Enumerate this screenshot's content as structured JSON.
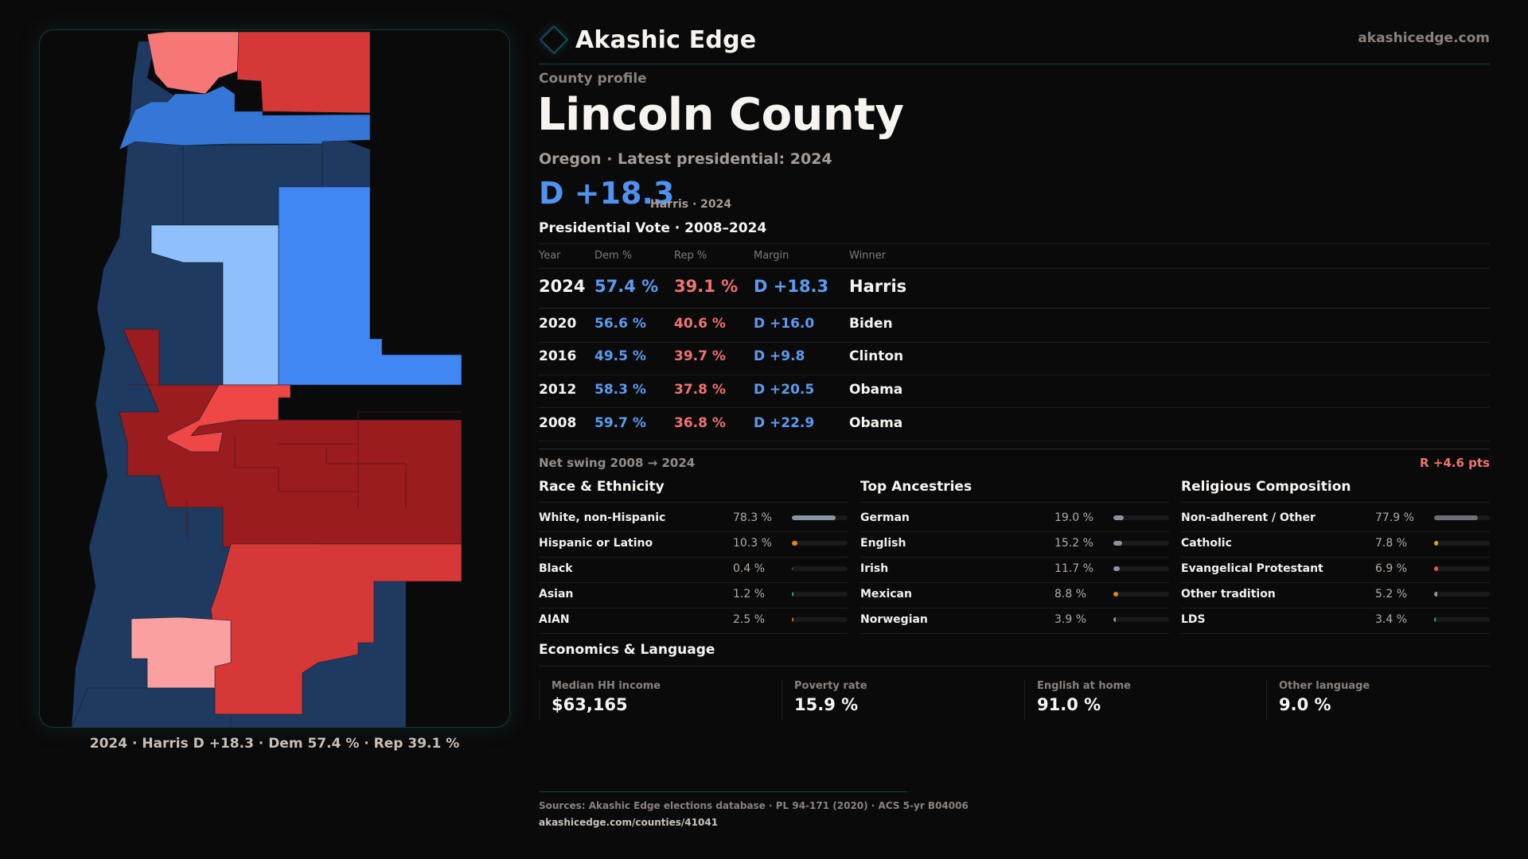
{
  "brand": {
    "name": "Akashic Edge",
    "icon": "diamond-outline-icon",
    "site": "akashicedge.com"
  },
  "profile": {
    "eyebrow": "County profile",
    "county": "Lincoln County",
    "subtitle": "Oregon · Latest presidential: 2024",
    "headline_margin": "D +18.3",
    "headline_sub": "Harris · 2024"
  },
  "colors": {
    "dem": "#5b9bf0",
    "rep": "#f07272",
    "accent": "#12505a"
  },
  "vote_table": {
    "title": "Presidential Vote · 2008–2024",
    "headers": {
      "year": "Year",
      "dem": "Dem %",
      "rep": "Rep %",
      "margin": "Margin",
      "winner": "Winner"
    },
    "rows": [
      {
        "year": "2024",
        "dem": "57.4 %",
        "rep": "39.1 %",
        "margin": "D +18.3",
        "winner": "Harris"
      },
      {
        "year": "2020",
        "dem": "56.6 %",
        "rep": "40.6 %",
        "margin": "D +16.0",
        "winner": "Biden"
      },
      {
        "year": "2016",
        "dem": "49.5 %",
        "rep": "39.7 %",
        "margin": "D +9.8",
        "winner": "Clinton"
      },
      {
        "year": "2012",
        "dem": "58.3 %",
        "rep": "37.8 %",
        "margin": "D +20.5",
        "winner": "Obama"
      },
      {
        "year": "2008",
        "dem": "59.7 %",
        "rep": "36.8 %",
        "margin": "D +22.9",
        "winner": "Obama"
      }
    ],
    "net_swing_label": "Net swing 2008 → 2024",
    "net_swing_value": "R +4.6 pts"
  },
  "demographics": [
    {
      "title": "Race & Ethnicity",
      "rows": [
        {
          "label": "White, non-Hispanic",
          "value": "78.3 %",
          "pct": 78.3,
          "color": "#8893a3"
        },
        {
          "label": "Hispanic or Latino",
          "value": "10.3 %",
          "pct": 10.3,
          "color": "#e08a0c"
        },
        {
          "label": "Black",
          "value": "0.4 %",
          "pct": 0.4,
          "color": "#6b6f78"
        },
        {
          "label": "Asian",
          "value": "1.2 %",
          "pct": 1.2,
          "color": "#2bb49a"
        },
        {
          "label": "AIAN",
          "value": "2.5 %",
          "pct": 2.5,
          "color": "#c9731e"
        }
      ]
    },
    {
      "title": "Top Ancestries",
      "rows": [
        {
          "label": "German",
          "value": "19.0 %",
          "pct": 19.0,
          "color": "#8893a3"
        },
        {
          "label": "English",
          "value": "15.2 %",
          "pct": 15.2,
          "color": "#8893a3"
        },
        {
          "label": "Irish",
          "value": "11.7 %",
          "pct": 11.7,
          "color": "#8893a3"
        },
        {
          "label": "Mexican",
          "value": "8.8 %",
          "pct": 8.8,
          "color": "#e08a0c"
        },
        {
          "label": "Norwegian",
          "value": "3.9 %",
          "pct": 3.9,
          "color": "#8893a3"
        }
      ]
    },
    {
      "title": "Religious Composition",
      "rows": [
        {
          "label": "Non-adherent / Other",
          "value": "77.9 %",
          "pct": 77.9,
          "color": "#6b6f78"
        },
        {
          "label": "Catholic",
          "value": "7.8 %",
          "pct": 7.8,
          "color": "#e0a40c"
        },
        {
          "label": "Evangelical Protestant",
          "value": "6.9 %",
          "pct": 6.9,
          "color": "#e05a5a"
        },
        {
          "label": "Other tradition",
          "value": "5.2 %",
          "pct": 5.2,
          "color": "#8893a3"
        },
        {
          "label": "LDS",
          "value": "3.4 %",
          "pct": 3.4,
          "color": "#2bb4a8"
        }
      ]
    }
  ],
  "economics": {
    "title": "Economics & Language",
    "stats": [
      {
        "label": "Median HH income",
        "value": "$63,165"
      },
      {
        "label": "Poverty rate",
        "value": "15.9 %"
      },
      {
        "label": "English at home",
        "value": "91.0 %"
      },
      {
        "label": "Other language",
        "value": "9.0 %"
      }
    ]
  },
  "map": {
    "caption": "2024 · Harris D +18.3 · Dem 57.4 % · Rep 39.1 %",
    "legend_colors": {
      "dem_strong": "#1f3a60",
      "dem_mid": "#3577d6",
      "dem_lean": "#4187f3",
      "dem_tilt": "#90c0fb",
      "rep_strong": "#9a1c1e",
      "rep_mid": "#d63838",
      "rep_lean": "#ef4646",
      "rep_tilt": "#f77777",
      "rep_light": "#fba0a0"
    }
  },
  "footer": {
    "sources": "Sources: Akashic Edge elections database · PL 94-171 (2020) · ACS 5-yr B04006",
    "url": "akashicedge.com/counties/41041"
  }
}
